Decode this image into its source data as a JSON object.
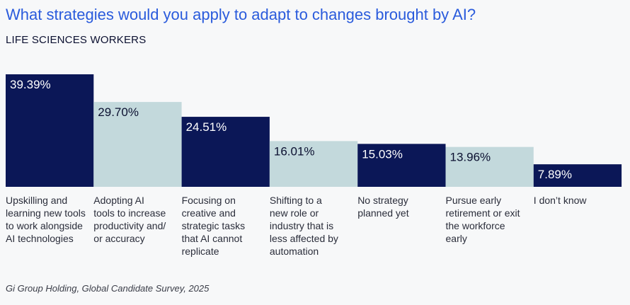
{
  "header": {
    "title": "What strategies would you apply to adapt to changes brought by AI?",
    "subtitle": "LIFE SCIENCES WORKERS"
  },
  "footer": {
    "source": "Gi Group Holding, Global Candidate Survey, 2025"
  },
  "colors": {
    "dark": "#0b1757",
    "light": "#c3d9dc",
    "label_light": "#ffffff",
    "label_dark": "#0b1030",
    "category_text": "#2a2d3a"
  },
  "chart_data": {
    "type": "bar",
    "title": "What strategies would you apply to adapt to changes brought by AI?",
    "subtitle": "LIFE SCIENCES WORKERS",
    "xlabel": "",
    "ylabel": "",
    "ylim": [
      0,
      39.39
    ],
    "unit": "%",
    "grid": false,
    "categories": [
      [
        "Upskilling and",
        "learning new tools",
        "to work alongside",
        "AI technologies"
      ],
      [
        "Adopting AI",
        "tools to increase",
        "productivity and/",
        "or accuracy"
      ],
      [
        "Focusing on",
        "creative and",
        "strategic tasks",
        "that AI cannot",
        "replicate"
      ],
      [
        "Shifting to a",
        "new role or",
        "industry that is",
        "less affected by",
        "automation"
      ],
      [
        "No strategy",
        "planned yet"
      ],
      [
        "Pursue early",
        "retirement or exit",
        "the workforce",
        "early"
      ],
      [
        "I don’t know"
      ]
    ],
    "values": [
      39.39,
      29.7,
      24.51,
      16.01,
      15.03,
      13.96,
      7.89
    ],
    "value_labels": [
      "39.39%",
      "29.70%",
      "24.51%",
      "16.01%",
      "15.03%",
      "13.96%",
      "7.89%"
    ],
    "bar_colors": [
      "dark",
      "light",
      "dark",
      "light",
      "dark",
      "light",
      "dark"
    ]
  }
}
